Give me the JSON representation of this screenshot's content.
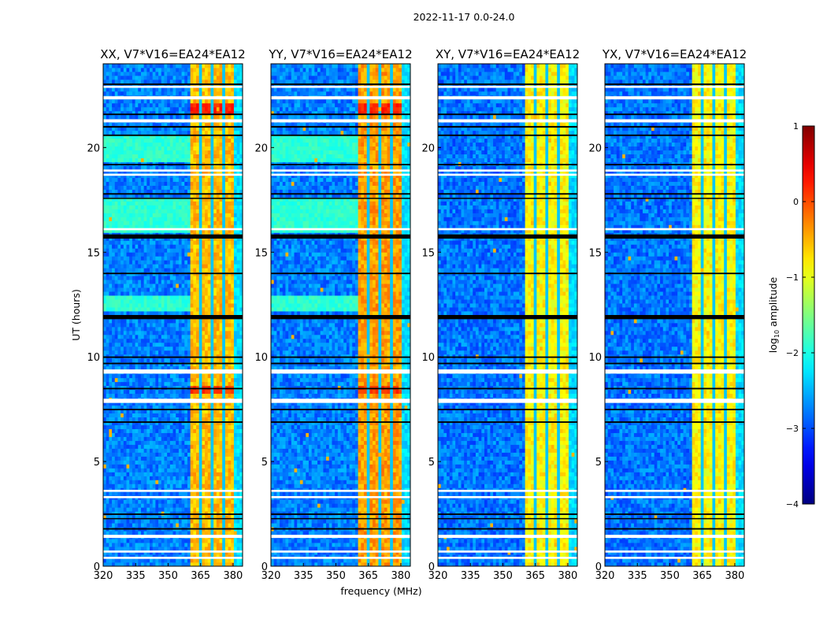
{
  "chart_data": {
    "type": "heatmap",
    "title": "2022-11-17 0.0-24.0",
    "xlabel": "frequency (MHz)",
    "ylabel": "UT (hours)",
    "xlim": [
      320,
      384.4
    ],
    "ylim": [
      0,
      24
    ],
    "xticks": [
      320,
      335,
      350,
      365,
      380
    ],
    "yticks": [
      0,
      5,
      10,
      15,
      20
    ],
    "colorbar": {
      "label_prefix": "log",
      "label_sub": "10",
      "label_suffix": " amplitude",
      "range": [
        -4,
        1
      ],
      "ticks": [
        1,
        0,
        -1,
        -2,
        -3,
        -4
      ],
      "colormap": "jet"
    },
    "panels": [
      {
        "title": "XX, V7*V16=EA24*EA12",
        "baseline": -2.75,
        "rfi_level": -0.55,
        "cyan_bands": true
      },
      {
        "title": "YY, V7*V16=EA24*EA12",
        "baseline": -2.75,
        "rfi_level": -0.4,
        "cyan_bands": true
      },
      {
        "title": "XY, V7*V16=EA24*EA12",
        "baseline": -2.8,
        "rfi_level": -0.85,
        "cyan_bands": false
      },
      {
        "title": "YX, V7*V16=EA24*EA12",
        "baseline": -2.8,
        "rfi_level": -0.85,
        "cyan_bands": false
      }
    ],
    "rfi_band_mhz": [
      360.5,
      380
    ],
    "rfi_gaps_mhz": [
      365.5,
      370.5,
      375.5
    ],
    "cyan_bands_hours": [
      [
        19.3,
        20.6
      ],
      [
        16.0,
        17.6
      ],
      [
        12.1,
        13.0
      ]
    ],
    "cyan_level": -1.9,
    "strong_rfi_hours": [
      [
        21.6,
        22.1,
        0.2
      ],
      [
        8.25,
        8.6,
        0.1
      ]
    ],
    "flagged_white_hours": [
      [
        22.85,
        22.95
      ],
      [
        22.3,
        22.45
      ],
      [
        21.2,
        21.35
      ],
      [
        18.65,
        18.75
      ],
      [
        18.85,
        18.95
      ],
      [
        16.05,
        16.15
      ],
      [
        9.2,
        9.4
      ],
      [
        7.8,
        8.0
      ],
      [
        3.55,
        3.65
      ],
      [
        3.25,
        3.35
      ],
      [
        1.35,
        1.5
      ],
      [
        0.65,
        0.75
      ],
      [
        0.35,
        0.45
      ]
    ],
    "flagged_black_hours": [
      [
        22.98,
        23.06
      ],
      [
        21.55,
        21.62
      ],
      [
        20.95,
        21.03
      ],
      [
        20.55,
        20.62
      ],
      [
        19.15,
        19.22
      ],
      [
        17.75,
        17.82
      ],
      [
        17.55,
        17.6
      ],
      [
        15.65,
        15.85
      ],
      [
        13.95,
        14.02
      ],
      [
        11.8,
        12.0
      ],
      [
        9.95,
        10.02
      ],
      [
        9.65,
        9.72
      ],
      [
        8.45,
        8.52
      ],
      [
        7.45,
        7.52
      ],
      [
        6.85,
        6.92
      ],
      [
        2.45,
        2.52
      ],
      [
        2.25,
        2.3
      ],
      [
        1.75,
        1.82
      ]
    ]
  }
}
